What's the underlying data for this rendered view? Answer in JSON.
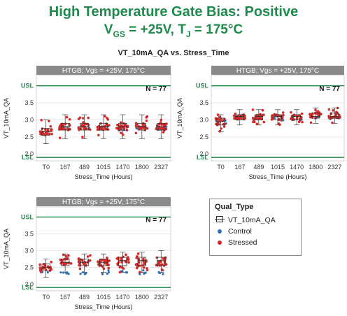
{
  "header": {
    "title_line1": "High Temperature Gate Bias: Positive",
    "title_line2_prefix": "V",
    "title_line2_sub1": "GS",
    "title_line2_mid": " = +25V, T",
    "title_line2_sub2": "J",
    "title_line2_suffix": " = 175°C",
    "subtitle": "VT_10mA_QA vs. Stress_Time"
  },
  "legend": {
    "title": "Qual_Type",
    "items": [
      {
        "label": "VT_10mA_QA",
        "symbol": "box-whisker"
      },
      {
        "label": "Control",
        "symbol": "dot",
        "color": "#2f6fb4"
      },
      {
        "label": "Stressed",
        "symbol": "dot",
        "color": "#d42a2a"
      }
    ]
  },
  "colors": {
    "accent": "#1e8a4c",
    "panel_header": "#8a8a8a",
    "control": "#2f6fb4",
    "stressed": "#d42a2a"
  },
  "chart_data": [
    {
      "type": "scatter",
      "panel_header": "HTGB; Vgs = +25V, 175°C",
      "n_label": "N = 77",
      "xlabel": "Stress_Time (Hours)",
      "ylabel": "VT_10mA_QA",
      "categories": [
        "T0",
        "167",
        "489",
        "1015",
        "1470",
        "1800",
        "2327"
      ],
      "ylim": [
        1.8,
        4.3
      ],
      "yticks": [
        2.0,
        2.5,
        3.0,
        3.5
      ],
      "usl": 4.0,
      "lsl": 1.9,
      "stressed": {
        "min": [
          2.3,
          2.45,
          2.45,
          2.45,
          2.45,
          2.45,
          2.45
        ],
        "q1": [
          2.55,
          2.7,
          2.7,
          2.7,
          2.7,
          2.7,
          2.7
        ],
        "median": [
          2.65,
          2.8,
          2.8,
          2.8,
          2.8,
          2.8,
          2.8
        ],
        "q3": [
          2.75,
          2.9,
          2.9,
          2.9,
          2.9,
          2.9,
          2.9
        ],
        "max": [
          3.0,
          3.15,
          3.15,
          3.15,
          3.15,
          3.15,
          3.15
        ]
      },
      "control": {
        "values": [
          2.6,
          2.75,
          2.75,
          2.75,
          2.75,
          2.75,
          2.75
        ]
      }
    },
    {
      "type": "scatter",
      "panel_header": "HTGB; Vgs = +25V, 175°C",
      "n_label": "N = 77",
      "xlabel": "Stress_Time (Hours)",
      "ylabel": "VT_10mA_QA",
      "categories": [
        "T0",
        "167",
        "489",
        "1015",
        "1470",
        "1800",
        "2327"
      ],
      "ylim": [
        1.8,
        4.3
      ],
      "yticks": [
        2.0,
        2.5,
        3.0,
        3.5
      ],
      "usl": 4.0,
      "lsl": 1.9,
      "stressed": {
        "min": [
          2.65,
          2.85,
          2.85,
          2.85,
          2.85,
          2.9,
          2.9
        ],
        "q1": [
          2.85,
          3.0,
          3.0,
          3.0,
          3.0,
          3.05,
          3.05
        ],
        "median": [
          2.95,
          3.1,
          3.1,
          3.1,
          3.1,
          3.1,
          3.1
        ],
        "q3": [
          3.05,
          3.15,
          3.15,
          3.15,
          3.15,
          3.2,
          3.2
        ],
        "max": [
          3.15,
          3.3,
          3.3,
          3.3,
          3.3,
          3.35,
          3.35
        ]
      },
      "control": {
        "values": [
          2.95,
          3.05,
          3.05,
          3.05,
          3.05,
          3.05,
          3.05
        ]
      }
    },
    {
      "type": "scatter",
      "panel_header": "HTGB; Vgs = +25V, 175°C",
      "n_label": "N = 77",
      "xlabel": "Stress_Time (Hours)",
      "ylabel": "VT_10mA_QA",
      "categories": [
        "T0",
        "167",
        "489",
        "1015",
        "1470",
        "1800",
        "2327"
      ],
      "ylim": [
        1.8,
        4.3
      ],
      "yticks": [
        2.0,
        2.5,
        3.0,
        3.5
      ],
      "usl": 4.0,
      "lsl": 1.9,
      "stressed": {
        "min": [
          2.2,
          2.35,
          2.35,
          2.35,
          2.35,
          2.35,
          2.35
        ],
        "q1": [
          2.4,
          2.55,
          2.55,
          2.55,
          2.55,
          2.55,
          2.55
        ],
        "median": [
          2.5,
          2.65,
          2.65,
          2.65,
          2.7,
          2.7,
          2.7
        ],
        "q3": [
          2.6,
          2.75,
          2.75,
          2.75,
          2.8,
          2.8,
          2.8
        ],
        "max": [
          2.75,
          2.9,
          2.9,
          2.9,
          2.95,
          2.95,
          3.0
        ]
      },
      "control": {
        "values": [
          2.4,
          2.35,
          2.35,
          2.35,
          2.35,
          2.35,
          2.35
        ]
      }
    }
  ]
}
